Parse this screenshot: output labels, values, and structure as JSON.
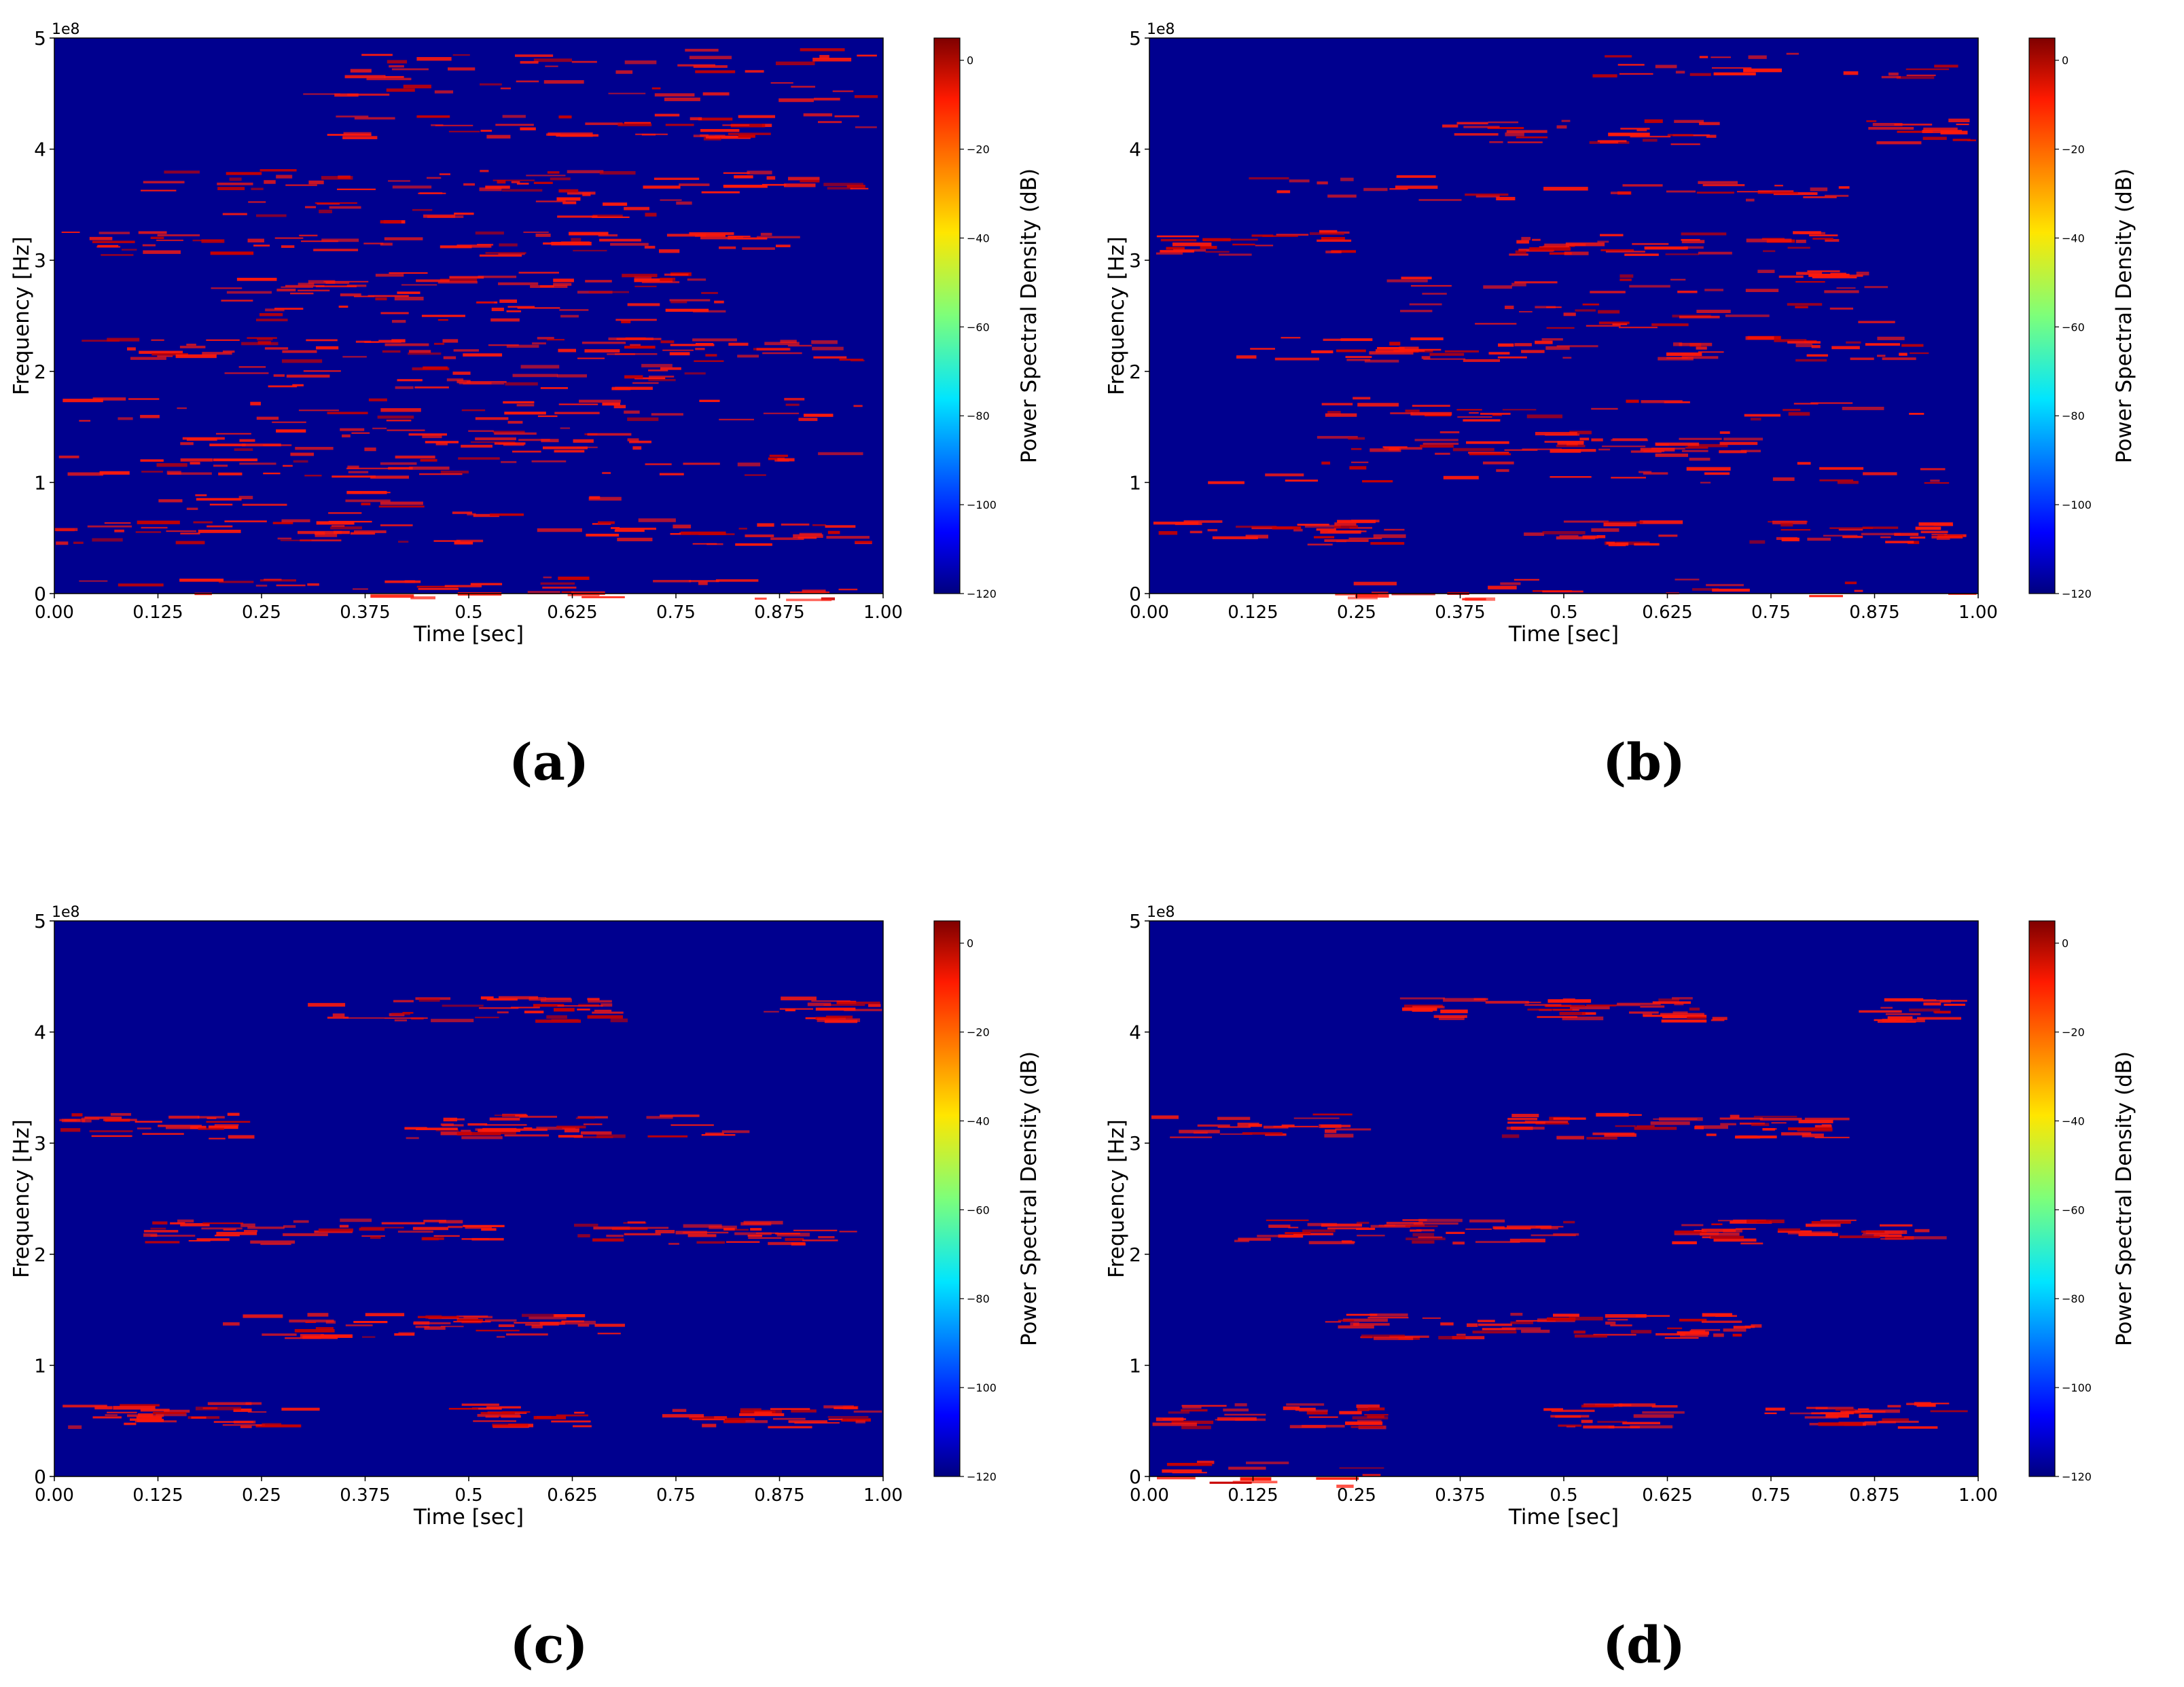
{
  "colors": {
    "background": "#00008f",
    "signal": "#ff1a0a",
    "signal_edge": "#c80000"
  },
  "colorbar": {
    "label": "Power Spectral Density (dB)",
    "ticks": [
      "0",
      "−20",
      "−40",
      "−60",
      "−80",
      "−100",
      "−120"
    ],
    "range": [
      -120,
      5
    ]
  },
  "chart_data": [
    {
      "type": "heatmap",
      "caption": "(a)",
      "xlabel": "Time [sec]",
      "ylabel": "Frequency [Hz]",
      "y_offset_label": "1e8",
      "xticks": [
        "0.00",
        "0.125",
        "0.25",
        "0.375",
        "0.5",
        "0.625",
        "0.75",
        "0.875",
        "1.00"
      ],
      "yticks": [
        "0",
        "1",
        "2",
        "3",
        "4",
        "5"
      ],
      "xlim": [
        0,
        1
      ],
      "ylim": [
        0,
        5
      ],
      "bursts": [
        {
          "f": 0.05,
          "t": [
            0.0,
            1.0
          ],
          "density": 0.3
        },
        {
          "f": 0.55,
          "t": [
            0.0,
            1.0
          ],
          "density": 0.55
        },
        {
          "f": 0.8,
          "t": [
            0.1,
            0.7
          ],
          "density": 0.25
        },
        {
          "f": 1.15,
          "t": [
            0.0,
            1.0
          ],
          "density": 0.35
        },
        {
          "f": 1.38,
          "t": [
            0.15,
            0.75
          ],
          "density": 0.55
        },
        {
          "f": 1.65,
          "t": [
            0.0,
            1.0
          ],
          "density": 0.3
        },
        {
          "f": 1.95,
          "t": [
            0.2,
            0.8
          ],
          "density": 0.45
        },
        {
          "f": 2.2,
          "t": [
            0.0,
            1.0
          ],
          "density": 0.6
        },
        {
          "f": 2.55,
          "t": [
            0.2,
            0.85
          ],
          "density": 0.35
        },
        {
          "f": 2.78,
          "t": [
            0.15,
            0.85
          ],
          "density": 0.5
        },
        {
          "f": 3.15,
          "t": [
            0.0,
            0.9
          ],
          "density": 0.55
        },
        {
          "f": 3.45,
          "t": [
            0.2,
            0.8
          ],
          "density": 0.3
        },
        {
          "f": 3.7,
          "t": [
            0.1,
            1.0
          ],
          "density": 0.5
        },
        {
          "f": 4.2,
          "t": [
            0.3,
            1.0
          ],
          "density": 0.5
        },
        {
          "f": 4.55,
          "t": [
            0.3,
            1.0
          ],
          "density": 0.25
        },
        {
          "f": 4.8,
          "t": [
            0.35,
            1.0
          ],
          "density": 0.3
        }
      ]
    },
    {
      "type": "heatmap",
      "caption": "(b)",
      "xlabel": "Time [sec]",
      "ylabel": "Frequency [Hz]",
      "y_offset_label": "1e8",
      "xticks": [
        "0.00",
        "0.125",
        "0.25",
        "0.375",
        "0.5",
        "0.625",
        "0.75",
        "0.875",
        "1.00"
      ],
      "yticks": [
        "0",
        "1",
        "2",
        "3",
        "4",
        "5"
      ],
      "xlim": [
        0,
        1
      ],
      "ylim": [
        0,
        5
      ],
      "bursts": [
        {
          "f": 0.05,
          "t": [
            0.15,
            1.0
          ],
          "density": 0.2
        },
        {
          "f": 0.55,
          "t": [
            0.0,
            0.32
          ],
          "density": 0.7
        },
        {
          "f": 0.55,
          "t": [
            0.45,
            0.65
          ],
          "density": 0.6
        },
        {
          "f": 0.55,
          "t": [
            0.7,
            1.0
          ],
          "density": 0.7
        },
        {
          "f": 1.1,
          "t": [
            0.0,
            1.0
          ],
          "density": 0.2
        },
        {
          "f": 1.35,
          "t": [
            0.2,
            0.75
          ],
          "density": 0.7
        },
        {
          "f": 1.65,
          "t": [
            0.2,
            0.95
          ],
          "density": 0.3
        },
        {
          "f": 2.2,
          "t": [
            0.1,
            0.55
          ],
          "density": 0.6
        },
        {
          "f": 2.2,
          "t": [
            0.6,
            0.95
          ],
          "density": 0.6
        },
        {
          "f": 2.5,
          "t": [
            0.3,
            0.9
          ],
          "density": 0.3
        },
        {
          "f": 2.8,
          "t": [
            0.2,
            0.9
          ],
          "density": 0.3
        },
        {
          "f": 3.15,
          "t": [
            0.0,
            0.25
          ],
          "density": 0.7
        },
        {
          "f": 3.15,
          "t": [
            0.42,
            0.85
          ],
          "density": 0.7
        },
        {
          "f": 3.65,
          "t": [
            0.1,
            0.9
          ],
          "density": 0.3
        },
        {
          "f": 4.15,
          "t": [
            0.35,
            0.7
          ],
          "density": 0.6
        },
        {
          "f": 4.15,
          "t": [
            0.85,
            1.0
          ],
          "density": 0.6
        },
        {
          "f": 4.75,
          "t": [
            0.5,
            1.0
          ],
          "density": 0.3
        }
      ]
    },
    {
      "type": "heatmap",
      "caption": "(c)",
      "xlabel": "Time [sec]",
      "ylabel": "Frequency [Hz]",
      "y_offset_label": "1e8",
      "xticks": [
        "0.00",
        "0.125",
        "0.25",
        "0.375",
        "0.5",
        "0.625",
        "0.75",
        "0.875",
        "1.00"
      ],
      "yticks": [
        "0",
        "1",
        "2",
        "3",
        "4",
        "5"
      ],
      "xlim": [
        0,
        1
      ],
      "ylim": [
        0,
        5
      ],
      "bursts": [
        {
          "f": 0.55,
          "t": [
            0.0,
            0.33
          ],
          "density": 0.8
        },
        {
          "f": 0.55,
          "t": [
            0.47,
            0.65
          ],
          "density": 0.8
        },
        {
          "f": 0.55,
          "t": [
            0.73,
            1.0
          ],
          "density": 0.8
        },
        {
          "f": 1.35,
          "t": [
            0.2,
            0.7
          ],
          "density": 0.8
        },
        {
          "f": 2.2,
          "t": [
            0.1,
            0.55
          ],
          "density": 0.8
        },
        {
          "f": 2.2,
          "t": [
            0.62,
            0.97
          ],
          "density": 0.8
        },
        {
          "f": 3.15,
          "t": [
            0.0,
            0.27
          ],
          "density": 0.8
        },
        {
          "f": 3.15,
          "t": [
            0.42,
            0.85
          ],
          "density": 0.8
        },
        {
          "f": 4.2,
          "t": [
            0.3,
            0.7
          ],
          "density": 0.8
        },
        {
          "f": 4.2,
          "t": [
            0.85,
            1.0
          ],
          "density": 0.8
        }
      ]
    },
    {
      "type": "heatmap",
      "caption": "(d)",
      "xlabel": "Time [sec]",
      "ylabel": "Frequency [Hz]",
      "y_offset_label": "1e8",
      "xticks": [
        "0.00",
        "0.125",
        "0.25",
        "0.375",
        "0.5",
        "0.625",
        "0.75",
        "0.875",
        "1.00"
      ],
      "yticks": [
        "0",
        "1",
        "2",
        "3",
        "4",
        "5"
      ],
      "xlim": [
        0,
        1
      ],
      "ylim": [
        0,
        5
      ],
      "bursts": [
        {
          "f": 0.02,
          "t": [
            0.0,
            0.3
          ],
          "density": 0.3
        },
        {
          "f": 0.55,
          "t": [
            0.0,
            0.32
          ],
          "density": 0.8
        },
        {
          "f": 0.55,
          "t": [
            0.47,
            0.65
          ],
          "density": 0.8
        },
        {
          "f": 0.55,
          "t": [
            0.73,
            1.0
          ],
          "density": 0.8
        },
        {
          "f": 1.35,
          "t": [
            0.2,
            0.75
          ],
          "density": 0.85
        },
        {
          "f": 2.2,
          "t": [
            0.1,
            0.53
          ],
          "density": 0.85
        },
        {
          "f": 2.2,
          "t": [
            0.63,
            0.97
          ],
          "density": 0.85
        },
        {
          "f": 3.15,
          "t": [
            0.0,
            0.27
          ],
          "density": 0.6
        },
        {
          "f": 3.15,
          "t": [
            0.42,
            0.85
          ],
          "density": 0.85
        },
        {
          "f": 4.2,
          "t": [
            0.3,
            0.7
          ],
          "density": 0.85
        },
        {
          "f": 4.2,
          "t": [
            0.85,
            1.0
          ],
          "density": 0.85
        }
      ]
    }
  ]
}
